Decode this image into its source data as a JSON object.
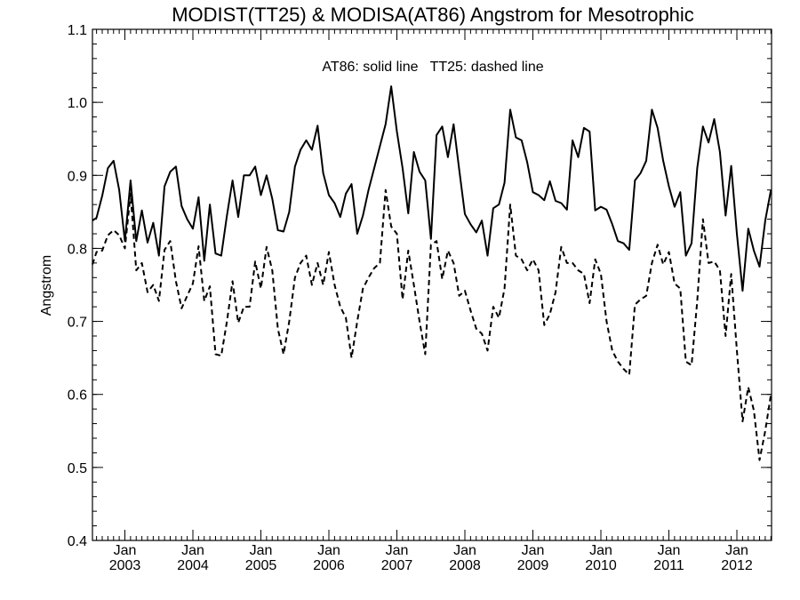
{
  "chart_data": {
    "type": "line",
    "title": "MODIST(TT25) & MODISA(AT86)  Angstrom for Mesotrophic",
    "ylabel": "Angstrom",
    "xlabel": "",
    "annotation": "AT86: solid line   TT25: dashed line",
    "xlim": [
      "2002-07",
      "2012-09"
    ],
    "ylim": [
      0.4,
      1.1
    ],
    "y_ticks": [
      "0.4",
      "0.5",
      "0.6",
      "0.7",
      "0.8",
      "0.9",
      "1.0",
      "1.1"
    ],
    "x_ticks": [
      {
        "month": "Jan",
        "year": "2003"
      },
      {
        "month": "Jan",
        "year": "2004"
      },
      {
        "month": "Jan",
        "year": "2005"
      },
      {
        "month": "Jan",
        "year": "2006"
      },
      {
        "month": "Jan",
        "year": "2007"
      },
      {
        "month": "Jan",
        "year": "2008"
      },
      {
        "month": "Jan",
        "year": "2009"
      },
      {
        "month": "Jan",
        "year": "2010"
      },
      {
        "month": "Jan",
        "year": "2011"
      },
      {
        "month": "Jan",
        "year": "2012"
      }
    ],
    "grid": false,
    "start_month": "2002-07",
    "series": [
      {
        "style": "solid",
        "color": "#000000",
        "values": [
          0.838,
          0.842,
          0.872,
          0.91,
          0.92,
          0.88,
          0.81,
          0.893,
          0.81,
          0.852,
          0.808,
          0.835,
          0.79,
          0.885,
          0.905,
          0.912,
          0.858,
          0.84,
          0.827,
          0.87,
          0.783,
          0.86,
          0.793,
          0.79,
          0.845,
          0.893,
          0.843,
          0.9,
          0.9,
          0.912,
          0.873,
          0.9,
          0.868,
          0.825,
          0.823,
          0.85,
          0.912,
          0.935,
          0.948,
          0.935,
          0.968,
          0.903,
          0.873,
          0.862,
          0.843,
          0.875,
          0.888,
          0.82,
          0.845,
          0.88,
          0.91,
          0.94,
          0.97,
          1.022,
          0.96,
          0.91,
          0.848,
          0.932,
          0.905,
          0.893,
          0.813,
          0.955,
          0.967,
          0.925,
          0.97,
          0.908,
          0.847,
          0.833,
          0.822,
          0.838,
          0.79,
          0.855,
          0.86,
          0.89,
          0.99,
          0.952,
          0.948,
          0.918,
          0.877,
          0.873,
          0.866,
          0.892,
          0.865,
          0.862,
          0.853,
          0.948,
          0.925,
          0.965,
          0.96,
          0.852,
          0.857,
          0.853,
          0.833,
          0.81,
          0.807,
          0.798,
          0.893,
          0.903,
          0.92,
          0.99,
          0.965,
          0.92,
          0.885,
          0.857,
          0.877,
          0.79,
          0.807,
          0.91,
          0.967,
          0.945,
          0.977,
          0.932,
          0.845,
          0.913,
          0.82,
          0.742,
          0.827,
          0.797,
          0.775,
          0.838,
          0.88
        ]
      },
      {
        "style": "dashed",
        "color": "#000000",
        "values": [
          0.778,
          0.795,
          0.797,
          0.818,
          0.825,
          0.818,
          0.8,
          0.875,
          0.77,
          0.78,
          0.74,
          0.75,
          0.728,
          0.798,
          0.81,
          0.755,
          0.718,
          0.735,
          0.752,
          0.803,
          0.728,
          0.748,
          0.655,
          0.653,
          0.7,
          0.755,
          0.698,
          0.72,
          0.72,
          0.782,
          0.745,
          0.802,
          0.77,
          0.69,
          0.655,
          0.7,
          0.76,
          0.78,
          0.79,
          0.75,
          0.78,
          0.75,
          0.795,
          0.75,
          0.72,
          0.705,
          0.65,
          0.7,
          0.745,
          0.76,
          0.773,
          0.78,
          0.88,
          0.83,
          0.82,
          0.73,
          0.797,
          0.75,
          0.7,
          0.655,
          0.805,
          0.81,
          0.758,
          0.797,
          0.78,
          0.735,
          0.742,
          0.715,
          0.69,
          0.683,
          0.66,
          0.72,
          0.705,
          0.745,
          0.86,
          0.79,
          0.785,
          0.77,
          0.785,
          0.77,
          0.695,
          0.71,
          0.74,
          0.802,
          0.78,
          0.78,
          0.77,
          0.765,
          0.725,
          0.785,
          0.765,
          0.7,
          0.66,
          0.645,
          0.635,
          0.627,
          0.723,
          0.73,
          0.735,
          0.78,
          0.805,
          0.778,
          0.795,
          0.752,
          0.745,
          0.645,
          0.64,
          0.728,
          0.84,
          0.78,
          0.782,
          0.77,
          0.68,
          0.765,
          0.66,
          0.563,
          0.61,
          0.578,
          0.51,
          0.55,
          0.6
        ]
      }
    ]
  }
}
